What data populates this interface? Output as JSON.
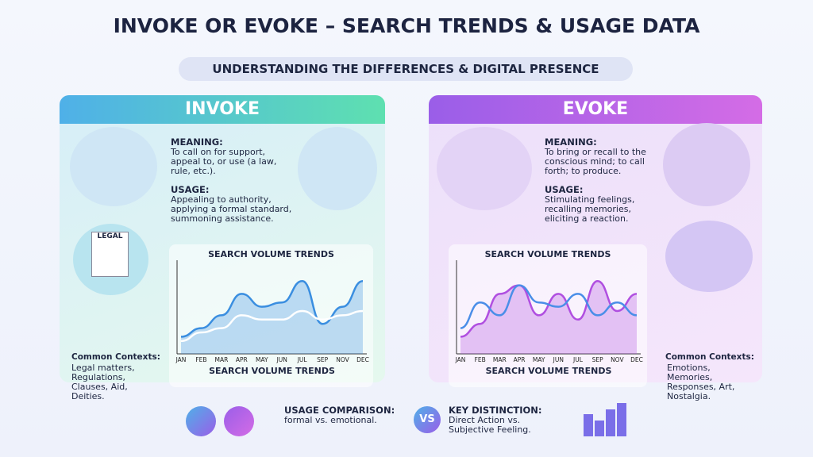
{
  "header": {
    "title": "INVOKE OR EVOKE – SEARCH TRENDS & USAGE DATA",
    "subtitle": "UNDERSTANDING THE DIFFERENCES & DIGITAL PRESENCE"
  },
  "panels": [
    {
      "heading": "INVOKE",
      "meaning_label": "MEANING:",
      "meaning": "To call on for support, appeal to, or use (a law, rule, etc.).",
      "usage_label": "USAGE:",
      "usage": "Appealing to authority, applying a formal standard, summoning assistance.",
      "icon_label": "LEGAL",
      "contexts_label": "Common Contexts:",
      "contexts": "Legal matters, Regulations, Clauses, Aid, Deities.",
      "chart": {
        "type": "line",
        "title": "SEARCH VOLUME TRENDS",
        "x_label": "SEARCH VOLUME TRENDS",
        "categories": [
          "JAN",
          "FEB",
          "MAR",
          "APR",
          "MAY",
          "JUN",
          "JUL",
          "SEP",
          "NOV",
          "DEC"
        ],
        "ylim": [
          0,
          100
        ],
        "series": [
          {
            "color": "#3a8ee0",
            "values": [
              20,
              30,
              45,
              70,
              55,
              60,
              85,
              35,
              55,
              85
            ]
          },
          {
            "color": "#ffffff",
            "values": [
              15,
              25,
              30,
              45,
              40,
              40,
              50,
              40,
              45,
              50
            ]
          }
        ]
      }
    },
    {
      "heading": "EVOKE",
      "meaning_label": "MEANING:",
      "meaning": "To bring or recall to the conscious mind; to call forth; to produce.",
      "usage_label": "USAGE:",
      "usage": "Stimulating feelings, recalling memories, eliciting a reaction.",
      "contexts_label": "Common Contexts:",
      "contexts": "Emotions, Memories, Responses, Art, Nostalgia.",
      "chart": {
        "type": "line",
        "title": "SEARCH VOLUME TRENDS",
        "x_label": "SEARCH VOLUME TRENDS",
        "categories": [
          "JAN",
          "FEB",
          "MAR",
          "APR",
          "MAY",
          "JUN",
          "JUL",
          "SEP",
          "NOV",
          "DEC"
        ],
        "ylim": [
          0,
          100
        ],
        "series": [
          {
            "color": "#b04fe0",
            "values": [
              20,
              35,
              70,
              80,
              45,
              70,
              40,
              85,
              50,
              70
            ]
          },
          {
            "color": "#4a8ee8",
            "values": [
              30,
              60,
              45,
              80,
              60,
              55,
              70,
              45,
              60,
              45
            ]
          }
        ]
      }
    }
  ],
  "footer": {
    "comparison_label": "USAGE COMPARISON:",
    "comparison": "formal vs. emotional.",
    "vs": "VS",
    "distinction_label": "KEY DISTINCTION:",
    "distinction": "Direct Action vs. Subjective Feeling."
  }
}
